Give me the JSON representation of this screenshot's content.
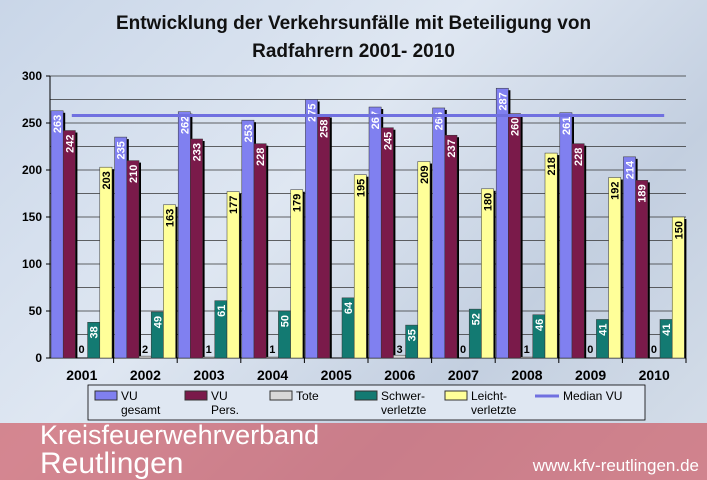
{
  "chart_data": {
    "type": "bar",
    "title": "Entwicklung der Verkehrsunfälle mit Beteiligung von Radfahrern 2001- 2010",
    "title_lines": [
      "Entwicklung der Verkehrsunfälle mit Beteiligung von",
      "Radfahrern 2001- 2010"
    ],
    "categories": [
      "2001",
      "2002",
      "2003",
      "2004",
      "2005",
      "2006",
      "2007",
      "2008",
      "2009",
      "2010"
    ],
    "series": [
      {
        "name": "VU gesamt",
        "color": "#8080f0",
        "label_color": "#ffffff",
        "values": [
          263,
          235,
          262,
          253,
          275,
          267,
          266,
          287,
          261,
          214
        ]
      },
      {
        "name": "VU Pers.",
        "color": "#7a1a4a",
        "label_color": "#ffffff",
        "values": [
          242,
          210,
          233,
          228,
          258,
          245,
          237,
          260,
          228,
          189
        ]
      },
      {
        "name": "Tote",
        "color": "#d8d8d8",
        "label_color": "#000000",
        "values": [
          0,
          2,
          1,
          1,
          null,
          3,
          0,
          1,
          0,
          0
        ]
      },
      {
        "name": "Schwer- verletzte",
        "color": "#137a72",
        "label_color": "#ffffff",
        "values": [
          38,
          49,
          61,
          50,
          64,
          35,
          52,
          46,
          41,
          41
        ]
      },
      {
        "name": "Leicht- verletzte",
        "color": "#ffff99",
        "label_color": "#000000",
        "values": [
          203,
          163,
          177,
          179,
          195,
          209,
          180,
          218,
          192,
          150
        ]
      }
    ],
    "median_line": {
      "name": "Median VU",
      "color": "#7070e0",
      "value": 258
    },
    "yticks": [
      0,
      50,
      100,
      150,
      200,
      250,
      300
    ],
    "ylim": [
      0,
      300
    ],
    "grid": true,
    "legend": "bottom"
  },
  "watermark": {
    "line1": "Kreisfeuerwehrverband",
    "line2": "Reutlingen",
    "url": "www.kfv-reutlingen.de"
  }
}
